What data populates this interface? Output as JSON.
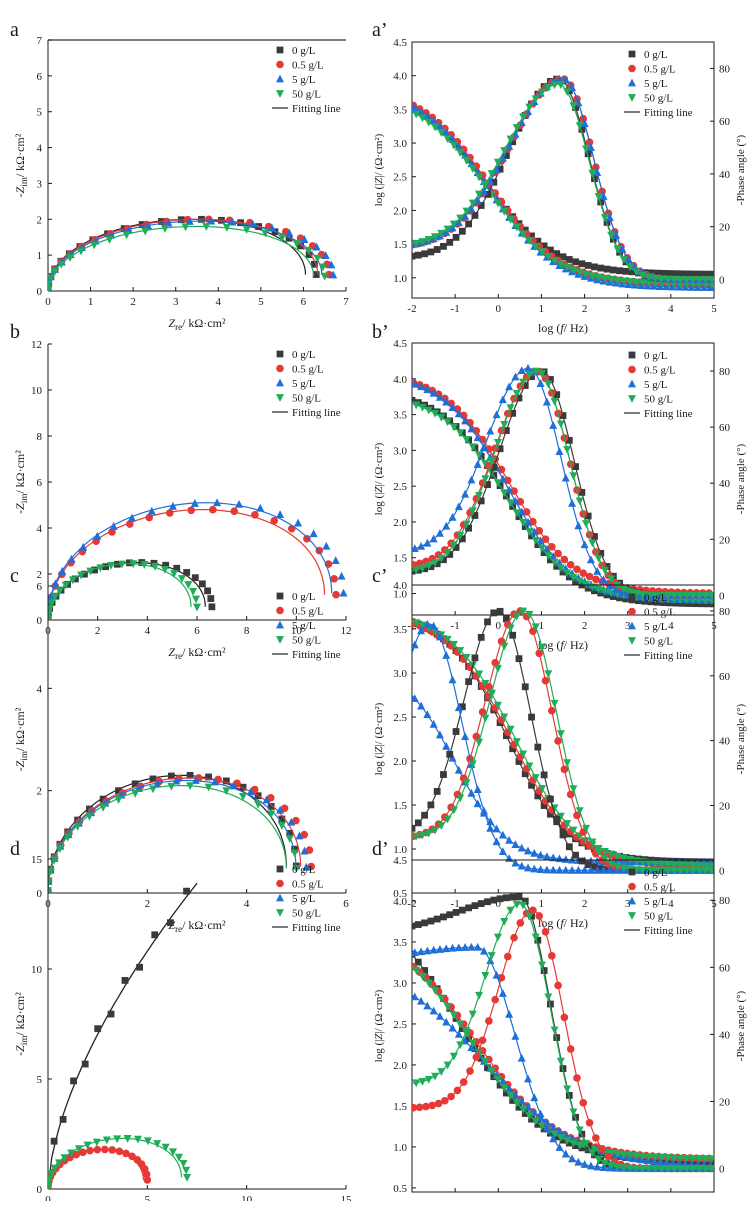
{
  "legend_labels": [
    "0 g/L",
    "0.5 g/L",
    "5 g/L",
    "50 g/L"
  ],
  "fit_label": "Fitting line",
  "series_colors": {
    "0 g/L": "#3a3a3a",
    "0.5 g/L": "#e53935",
    "5 g/L": "#1e6fd9",
    "50 g/L": "#1fad5a"
  },
  "chart_data": [
    {
      "panel": "a",
      "type": "scatter",
      "xlabel": {
        "main": "Z",
        "sub": "re",
        "rest": "/ kΩ·cm²"
      },
      "ylabel": {
        "main": "-Z",
        "sub": "im",
        "rest": "/ kΩ·cm²"
      },
      "xlim": [
        0,
        7
      ],
      "ylim": [
        0,
        7
      ],
      "xticks": [
        "0",
        "1",
        "2",
        "3",
        "4",
        "5",
        "6",
        "7"
      ],
      "yticks": [
        "0",
        "1",
        "2",
        "3",
        "4",
        "5",
        "6",
        "7"
      ],
      "arcs": [
        {
          "r0": 0,
          "r1": 6.3,
          "peak": 2.0
        },
        {
          "r0": 0,
          "r1": 6.6,
          "peak": 2.0
        },
        {
          "r0": 0,
          "r1": 6.7,
          "peak": 1.95
        },
        {
          "r0": 0,
          "r1": 6.5,
          "peak": 1.8
        }
      ]
    },
    {
      "panel": "a'",
      "type": "line",
      "xlabel": "log (f/ Hz)",
      "ylabel": "log (|Z|/ (Ω·cm²)",
      "y2label": "-Phase angle (°)",
      "xlim": [
        -2,
        5
      ],
      "ylim": [
        0.7,
        4.5
      ],
      "y2lim": [
        -7,
        90
      ],
      "xticks": [
        "-2",
        "-1",
        "0",
        "1",
        "2",
        "3",
        "4",
        "5"
      ],
      "yticks": [
        "1.0",
        "1.5",
        "2.0",
        "2.5",
        "3.0",
        "3.5",
        "4.0",
        "4.5"
      ],
      "y2ticks": [
        "0",
        "20",
        "40",
        "60",
        "80"
      ],
      "mag": [
        {
          "hi": 3.8,
          "lo": 1.05,
          "fc": -0.3,
          "w": 0.8
        },
        {
          "hi": 3.85,
          "lo": 0.9,
          "fc": -0.2,
          "w": 0.8
        },
        {
          "hi": 3.85,
          "lo": 0.85,
          "fc": -0.25,
          "w": 0.8
        },
        {
          "hi": 3.75,
          "lo": 0.9,
          "fc": -0.25,
          "w": 0.8
        }
      ],
      "phase": [
        {
          "lo": 8,
          "peak": 76,
          "fpk": 1.4,
          "sL": 1.3,
          "sR": 0.8
        },
        {
          "lo": 12,
          "peak": 76,
          "fpk": 1.5,
          "sL": 1.4,
          "sR": 0.8
        },
        {
          "lo": 12,
          "peak": 76,
          "fpk": 1.5,
          "sL": 1.4,
          "sR": 0.8
        },
        {
          "lo": 12,
          "peak": 74,
          "fpk": 1.4,
          "sL": 1.4,
          "sR": 0.8
        }
      ]
    },
    {
      "panel": "b",
      "type": "scatter",
      "xlabel": {
        "main": "Z",
        "sub": "re",
        "rest": "/ kΩ·cm²"
      },
      "ylabel": {
        "main": "-Z",
        "sub": "im",
        "rest": "/ kΩ·cm²"
      },
      "xlim": [
        0,
        12
      ],
      "ylim": [
        0,
        12
      ],
      "xticks": [
        "0",
        "2",
        "4",
        "6",
        "8",
        "10",
        "12"
      ],
      "yticks": [
        "0",
        "2",
        "4",
        "6",
        "8",
        "10",
        "12"
      ],
      "arcs": [
        {
          "r0": 0,
          "r1": 6.6,
          "peak": 2.5
        },
        {
          "r0": 0,
          "r1": 11.6,
          "peak": 4.8
        },
        {
          "r0": 0,
          "r1": 11.9,
          "peak": 5.1
        },
        {
          "r0": 0,
          "r1": 6.0,
          "peak": 2.45
        }
      ]
    },
    {
      "panel": "b'",
      "type": "line",
      "xlabel": "log (f/ Hz)",
      "ylabel": "log (|Z|/ (Ω·cm²)",
      "y2label": "-Phase angle (°)",
      "xlim": [
        -2,
        5
      ],
      "ylim": [
        0.7,
        4.5
      ],
      "y2lim": [
        -7,
        90
      ],
      "xticks": [
        "-2",
        "-1",
        "0",
        "1",
        "2",
        "3",
        "4",
        "5"
      ],
      "yticks": [
        "1.0",
        "1.5",
        "2.0",
        "2.5",
        "3.0",
        "3.5",
        "4.0",
        "4.5"
      ],
      "y2ticks": [
        "0",
        "20",
        "40",
        "60",
        "80"
      ],
      "mag": [
        {
          "hi": 3.85,
          "lo": 0.85,
          "fc": 0.2,
          "w": 0.75
        },
        {
          "hi": 4.1,
          "lo": 1.0,
          "fc": 0.25,
          "w": 0.75
        },
        {
          "hi": 4.1,
          "lo": 0.9,
          "fc": 0.2,
          "w": 0.75
        },
        {
          "hi": 3.8,
          "lo": 0.9,
          "fc": 0.2,
          "w": 0.75
        }
      ],
      "phase": [
        {
          "lo": 8,
          "peak": 80,
          "fpk": 1.0,
          "sL": 1.1,
          "sR": 0.85
        },
        {
          "lo": 10,
          "peak": 80,
          "fpk": 0.9,
          "sL": 1.1,
          "sR": 0.85
        },
        {
          "lo": 15,
          "peak": 81,
          "fpk": 0.7,
          "sL": 1.1,
          "sR": 0.85
        },
        {
          "lo": 8,
          "peak": 80,
          "fpk": 0.9,
          "sL": 1.1,
          "sR": 0.85
        }
      ]
    },
    {
      "panel": "c",
      "type": "scatter",
      "xlabel": {
        "main": "Z",
        "sub": "re",
        "rest": "/ kΩ·cm²"
      },
      "ylabel": {
        "main": "-Z",
        "sub": "im",
        "rest": "/ kΩ·cm²"
      },
      "xlim": [
        0,
        6
      ],
      "ylim": [
        0,
        6
      ],
      "xticks": [
        "0",
        "2",
        "4",
        "6"
      ],
      "yticks": [
        "0",
        "2",
        "4",
        "6"
      ],
      "arcs": [
        {
          "r0": 0,
          "r1": 5.0,
          "peak": 2.3
        },
        {
          "r0": 0,
          "r1": 5.3,
          "peak": 2.25
        },
        {
          "r0": 0,
          "r1": 5.2,
          "peak": 2.2
        },
        {
          "r0": 0,
          "r1": 5.0,
          "peak": 2.1
        }
      ]
    },
    {
      "panel": "c'",
      "type": "line",
      "xlabel": "log (f/ Hz)",
      "ylabel": "log (|Z|/ (Ω·cm²)",
      "y2label": "-Phase angle (°)",
      "xlim": [
        -2,
        5
      ],
      "ylim": [
        0.5,
        4.0
      ],
      "y2lim": [
        -7,
        88
      ],
      "xticks": [
        "-2",
        "-1",
        "0",
        "1",
        "2",
        "3",
        "4",
        "5"
      ],
      "yticks": [
        "0.5",
        "1.0",
        "1.5",
        "2.0",
        "2.5",
        "3.0",
        "3.5",
        "4.0"
      ],
      "y2ticks": [
        "0",
        "20",
        "40",
        "60",
        "80"
      ],
      "mag": [
        {
          "hi": 3.7,
          "lo": 0.85,
          "fc": 0.2,
          "w": 0.7
        },
        {
          "hi": 3.7,
          "lo": 0.8,
          "fc": 0.3,
          "w": 0.75
        },
        {
          "hi": 3.1,
          "lo": 0.85,
          "fc": -1.0,
          "w": 0.6
        },
        {
          "hi": 3.7,
          "lo": 0.8,
          "fc": 0.4,
          "w": 0.75
        }
      ],
      "phase": [
        {
          "lo": 10,
          "peak": 80,
          "fpk": 0.0,
          "sL": 0.9,
          "sR": 0.85
        },
        {
          "lo": 10,
          "peak": 80,
          "fpk": 0.5,
          "sL": 0.9,
          "sR": 0.85
        },
        {
          "lo": 0,
          "peak": 76,
          "fpk": -1.6,
          "sL": 0.9,
          "sR": 0.85
        },
        {
          "lo": 10,
          "peak": 80,
          "fpk": 0.6,
          "sL": 0.9,
          "sR": 0.85
        }
      ]
    },
    {
      "panel": "d",
      "type": "scatter",
      "xlabel": {
        "main": "Z",
        "sub": "re",
        "rest": "/ kΩ·cm²"
      },
      "ylabel": {
        "main": "-Z",
        "sub": "im",
        "rest": "/ kΩ·cm²"
      },
      "xlim": [
        0,
        15
      ],
      "ylim": [
        0,
        15
      ],
      "xticks": [
        "0",
        "5",
        "10",
        "15"
      ],
      "yticks": [
        "0",
        "5",
        "10",
        "15"
      ],
      "capacitive": {
        "x0": 0,
        "x1": 7.5,
        "y1": 13.9
      },
      "arcs": [
        {
          "r0": 0,
          "r1": 5.0,
          "peak": 1.8
        },
        {
          "r0": 0,
          "r1": 7.0,
          "peak": 2.3
        }
      ]
    },
    {
      "panel": "d'",
      "type": "line",
      "xlabel": "",
      "ylabel": "log (|Z|/ (Ω·cm²)",
      "y2label": "-Phase angle (°)",
      "xlim": [
        -2,
        5
      ],
      "ylim": [
        0.45,
        4.5
      ],
      "y2lim": [
        -7,
        92
      ],
      "xticks": [],
      "yticks": [
        "0.5",
        "1.0",
        "1.5",
        "2.0",
        "2.5",
        "3.0",
        "3.5",
        "4.0",
        "4.5"
      ],
      "y2ticks": [
        "0",
        "20",
        "40",
        "60",
        "80"
      ],
      "mag": [
        {
          "hi": 4.2,
          "lo": 0.8,
          "fc": -0.9,
          "w": 1.0
        },
        {
          "hi": 3.7,
          "lo": 0.85,
          "fc": -0.5,
          "w": 0.95
        },
        {
          "hi": 3.3,
          "lo": 0.75,
          "fc": -0.3,
          "w": 1.1
        },
        {
          "hi": 3.7,
          "lo": 0.85,
          "fc": -0.6,
          "w": 0.9
        }
      ],
      "phase": [
        {
          "lo": 70,
          "peak": 81,
          "fpk": 0.5,
          "sL": 1.6,
          "sR": 0.8
        },
        {
          "lo": 18,
          "peak": 77,
          "fpk": 0.8,
          "sL": 0.9,
          "sR": 0.8
        },
        {
          "lo": 62,
          "peak": 66,
          "fpk": -0.5,
          "sL": 1.6,
          "sR": 1.0
        },
        {
          "lo": 25,
          "peak": 79,
          "fpk": 0.5,
          "sL": 0.9,
          "sR": 0.8
        }
      ]
    }
  ],
  "panel_labels": [
    "a",
    "a’",
    "b",
    "b’",
    "c",
    "c’",
    "d",
    "d’"
  ]
}
